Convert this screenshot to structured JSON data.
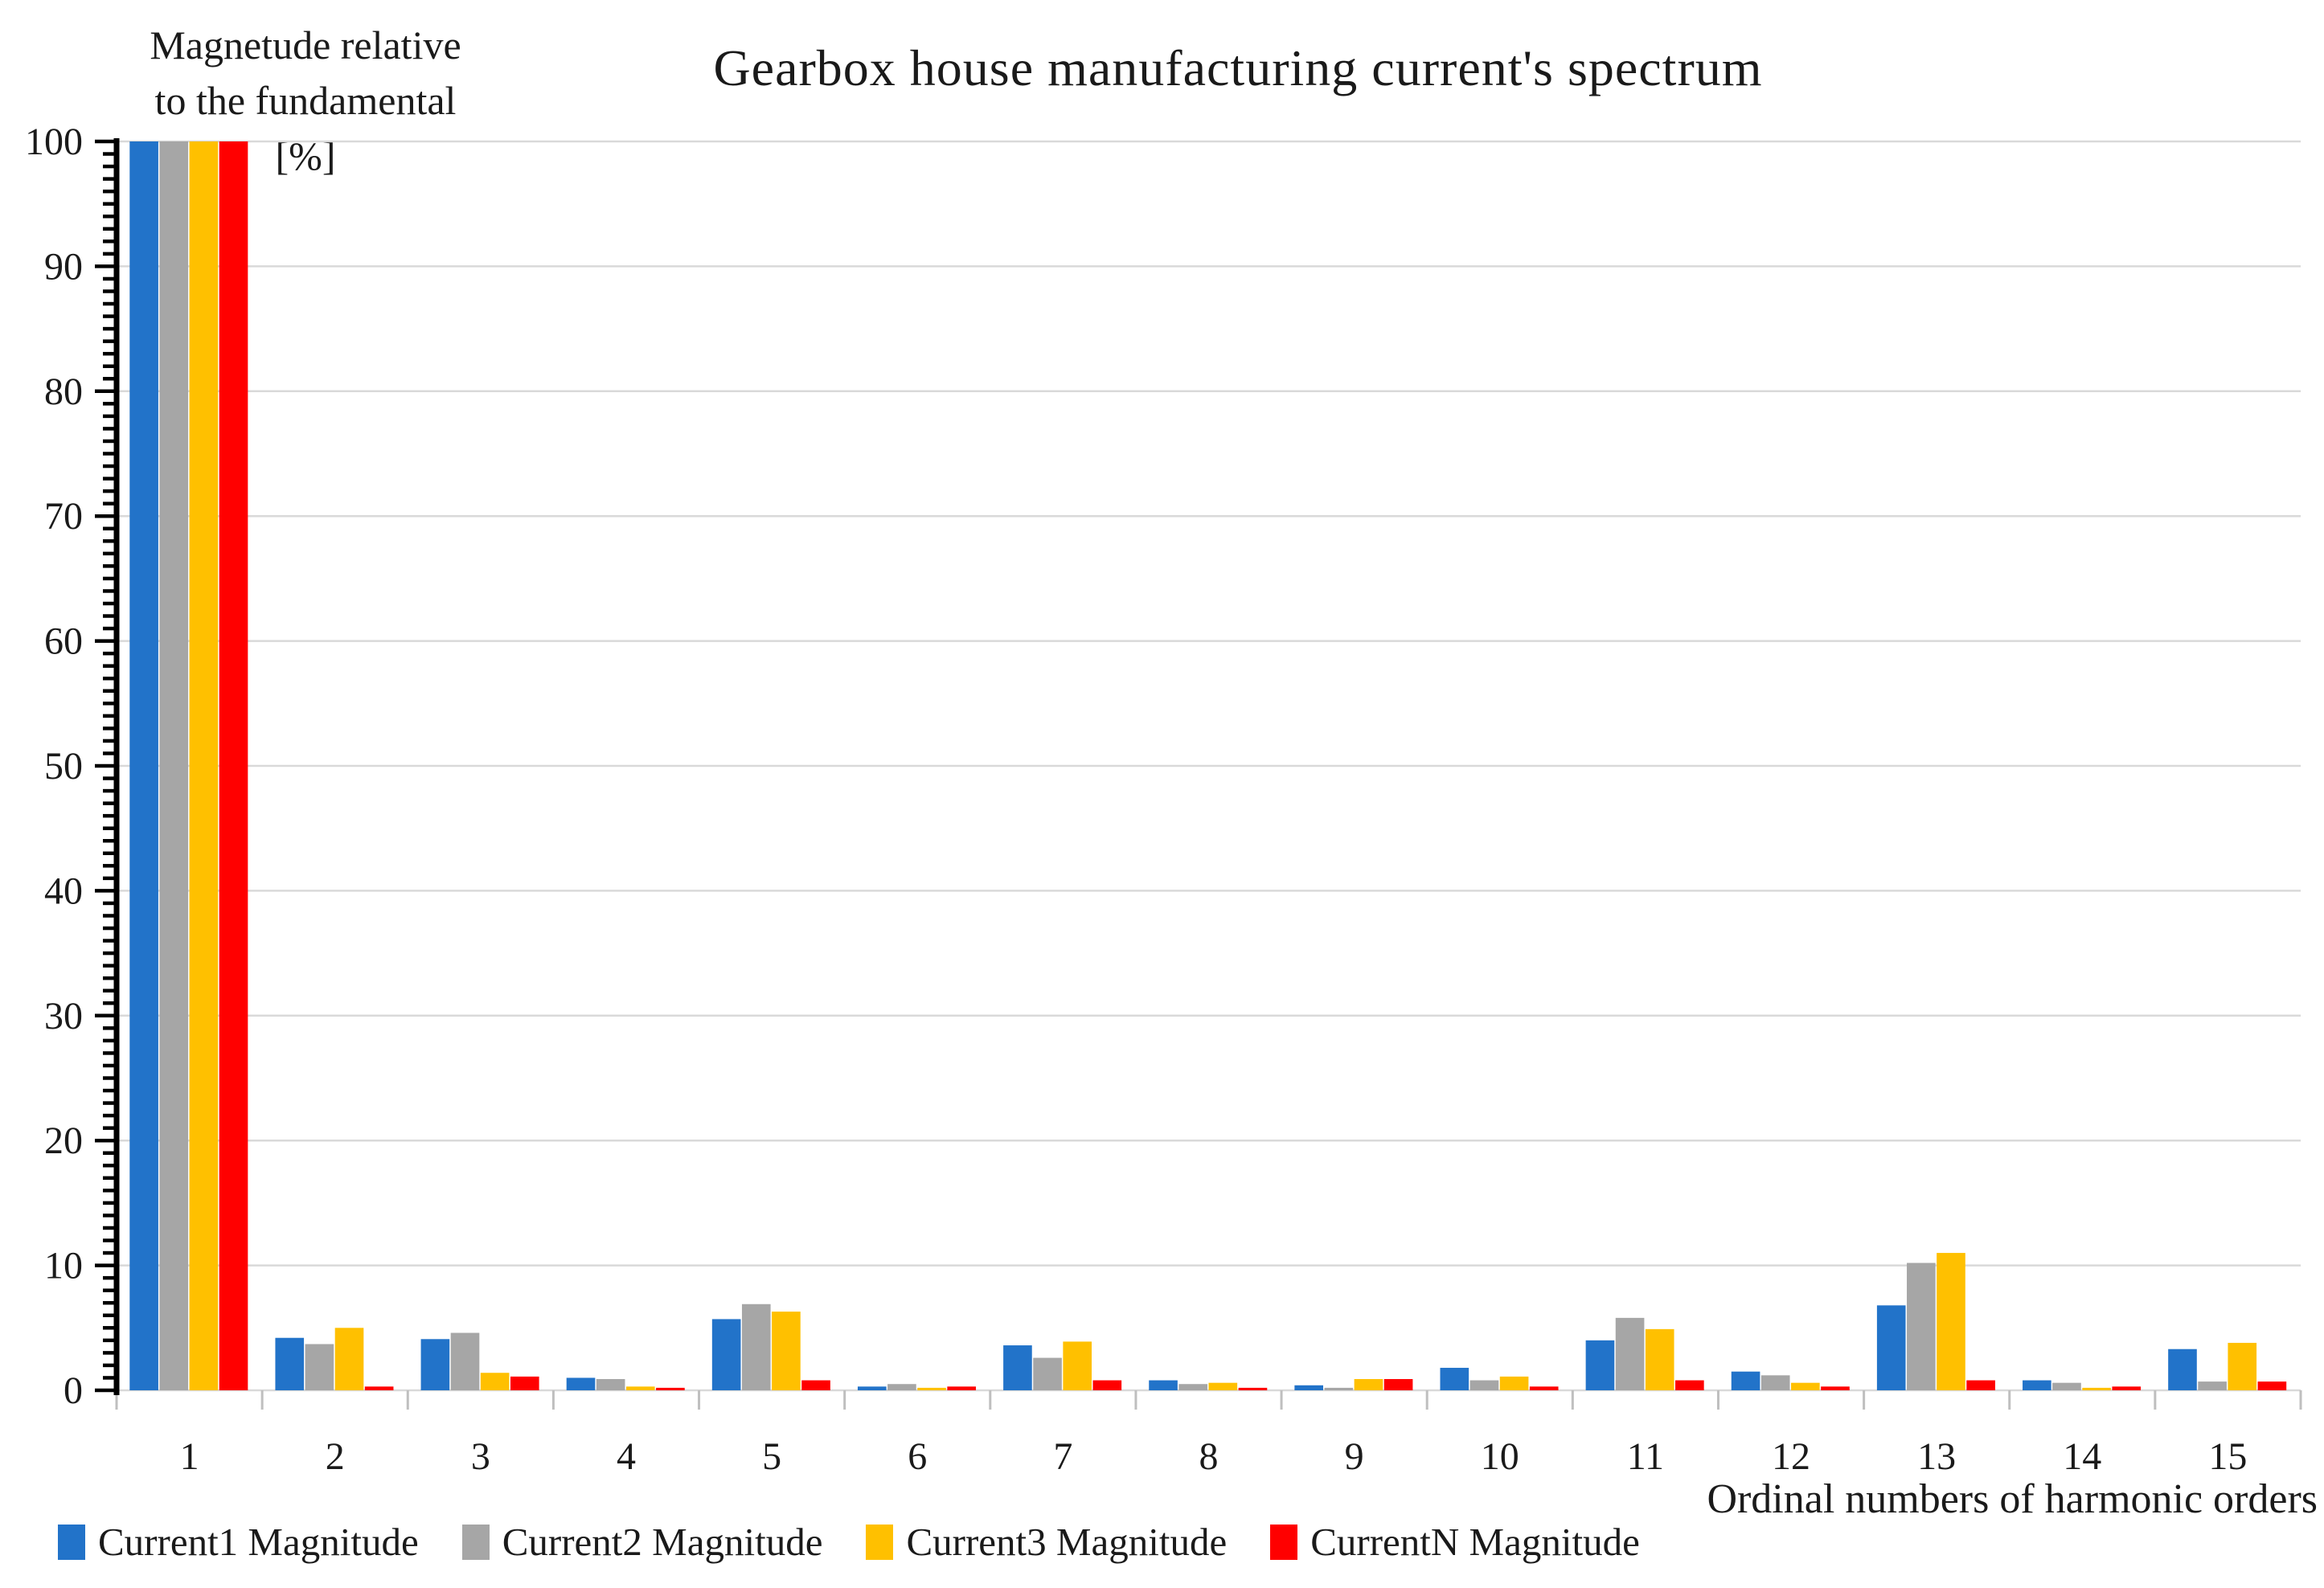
{
  "chart_data": {
    "type": "bar",
    "title": "Gearbox house manufacturing current's spectrum",
    "ylabel_lines": [
      "Magnetude relative",
      "to the fundamental",
      "[%]"
    ],
    "xlabel": "Ordinal numbers of harmonic orders",
    "categories": [
      "1",
      "2",
      "3",
      "4",
      "5",
      "6",
      "7",
      "8",
      "9",
      "10",
      "11",
      "12",
      "13",
      "14",
      "15"
    ],
    "ylim": [
      0,
      100
    ],
    "ytick_step": 10,
    "minor_tick_step": 1,
    "grid": true,
    "legend_position": "bottom",
    "colors": {
      "grid": "#d9d9d9",
      "y_axis": "#000000",
      "x_axis": "#bfbfbf",
      "text": "#1a1a1a"
    },
    "series": [
      {
        "name": "Current1 Magnitude",
        "color": "#2273c9",
        "values": [
          100,
          4.2,
          4.1,
          1.0,
          5.7,
          0.3,
          3.6,
          0.8,
          0.4,
          1.8,
          4.0,
          1.5,
          6.8,
          0.8,
          3.3
        ]
      },
      {
        "name": "Current2 Magnitude",
        "color": "#a6a6a6",
        "values": [
          100,
          3.7,
          4.6,
          0.9,
          6.9,
          0.5,
          2.6,
          0.5,
          0.2,
          0.8,
          5.8,
          1.2,
          10.2,
          0.6,
          0.7
        ]
      },
      {
        "name": "Current3 Magnitude",
        "color": "#ffc000",
        "values": [
          100,
          5.0,
          1.4,
          0.3,
          6.3,
          0.2,
          3.9,
          0.6,
          0.9,
          1.1,
          4.9,
          0.6,
          11.0,
          0.2,
          3.8
        ]
      },
      {
        "name": "CurrentN Magnitude",
        "color": "#ff0000",
        "values": [
          100,
          0.3,
          1.1,
          0.2,
          0.8,
          0.3,
          0.8,
          0.2,
          0.9,
          0.3,
          0.8,
          0.3,
          0.8,
          0.3,
          0.7
        ]
      }
    ]
  }
}
